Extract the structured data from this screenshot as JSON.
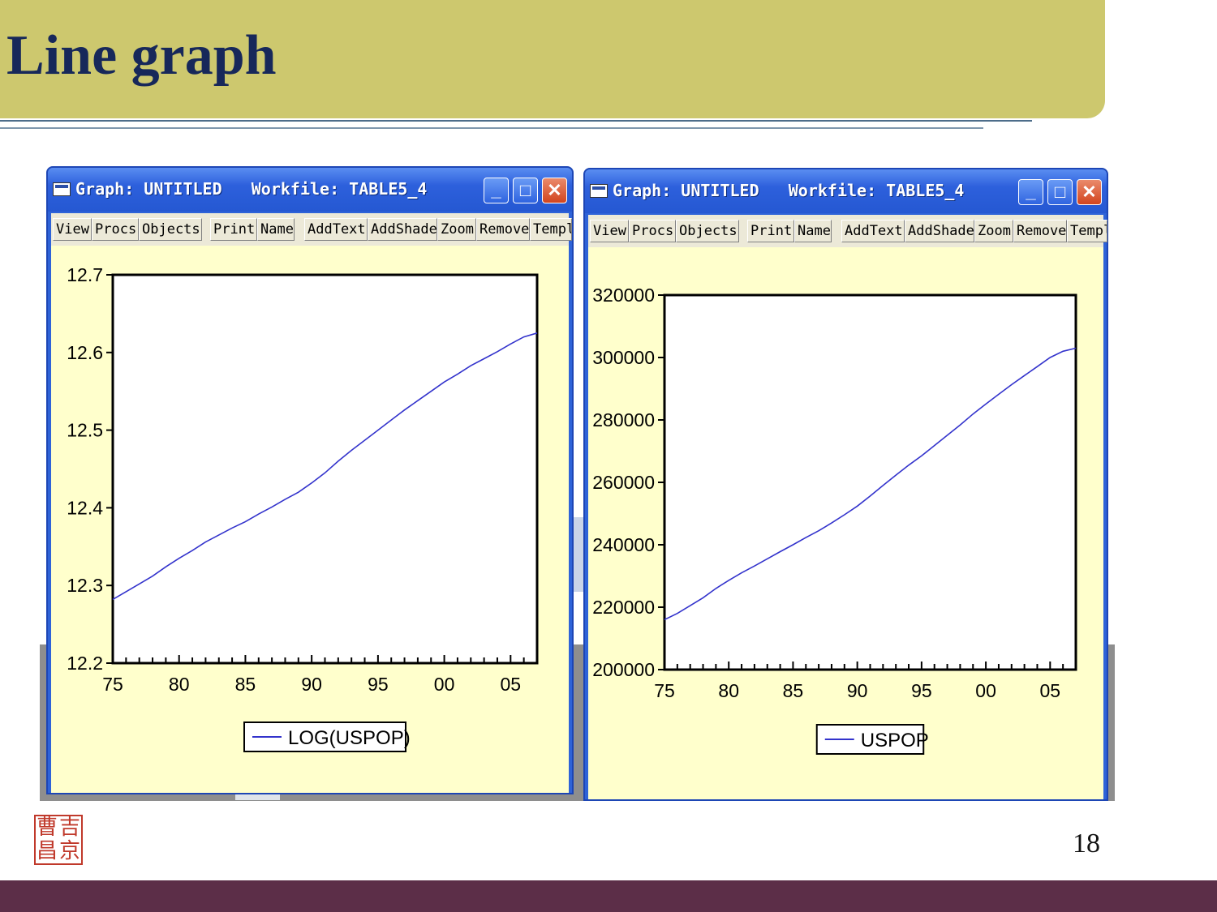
{
  "slide": {
    "title": "Line graph",
    "page_number": "18",
    "seal_chars": [
      "曹",
      "吉",
      "昌",
      "京"
    ]
  },
  "windows": [
    {
      "title": "Graph: UNTITLED   Workfile: TABLE5_4",
      "toolbar": [
        "View",
        "Procs",
        "Objects",
        "Print",
        "Name",
        "AddText",
        "AddShade",
        "Zoom",
        "Remove",
        "Templ"
      ],
      "controls": {
        "minimize": "_",
        "maximize": "□",
        "close": "✕"
      }
    },
    {
      "title": "Graph: UNTITLED   Workfile: TABLE5_4",
      "toolbar": [
        "View",
        "Procs",
        "Objects",
        "Print",
        "Name",
        "AddText",
        "AddShade",
        "Zoom",
        "Remove",
        "Templ"
      ],
      "controls": {
        "minimize": "_",
        "maximize": "□",
        "close": "✕"
      }
    }
  ],
  "chart_data": [
    {
      "type": "line",
      "ylim": [
        12.2,
        12.7
      ],
      "yticks": [
        "12.2",
        "12.3",
        "12.4",
        "12.5",
        "12.6",
        "12.7"
      ],
      "xlim": [
        1975,
        2007
      ],
      "xticks": [
        "75",
        "80",
        "85",
        "90",
        "95",
        "00",
        "05"
      ],
      "legend": "top-center",
      "color": "#3333cc",
      "series": [
        {
          "name": "LOG(USPOP)",
          "x": [
            1975,
            1976,
            1977,
            1978,
            1979,
            1980,
            1981,
            1982,
            1983,
            1984,
            1985,
            1986,
            1987,
            1988,
            1989,
            1990,
            1991,
            1992,
            1993,
            1994,
            1995,
            1996,
            1997,
            1998,
            1999,
            2000,
            2001,
            2002,
            2003,
            2004,
            2005,
            2006,
            2007
          ],
          "values": [
            12.282,
            12.292,
            12.302,
            12.312,
            12.324,
            12.335,
            12.345,
            12.356,
            12.365,
            12.374,
            12.382,
            12.392,
            12.401,
            12.411,
            12.42,
            12.432,
            12.445,
            12.46,
            12.474,
            12.487,
            12.5,
            12.513,
            12.526,
            12.538,
            12.55,
            12.562,
            12.572,
            12.583,
            12.592,
            12.601,
            12.611,
            12.62,
            12.625
          ]
        }
      ]
    },
    {
      "type": "line",
      "ylim": [
        200000,
        320000
      ],
      "yticks": [
        "200000",
        "220000",
        "240000",
        "260000",
        "280000",
        "300000",
        "320000"
      ],
      "xlim": [
        1975,
        2007
      ],
      "xticks": [
        "75",
        "80",
        "85",
        "90",
        "95",
        "00",
        "05"
      ],
      "legend": "top-center",
      "color": "#3333cc",
      "series": [
        {
          "name": "USPOP",
          "x": [
            1975,
            1976,
            1977,
            1978,
            1979,
            1980,
            1981,
            1982,
            1983,
            1984,
            1985,
            1986,
            1987,
            1988,
            1989,
            1990,
            1991,
            1992,
            1993,
            1994,
            1995,
            1996,
            1997,
            1998,
            1999,
            2000,
            2001,
            2002,
            2003,
            2004,
            2005,
            2006,
            2007
          ],
          "values": [
            216000,
            218000,
            220500,
            223000,
            226000,
            228600,
            231000,
            233200,
            235500,
            237800,
            240000,
            242300,
            244500,
            247000,
            249600,
            252400,
            255600,
            259000,
            262300,
            265500,
            268500,
            271800,
            275100,
            278400,
            281900,
            285100,
            288200,
            291300,
            294200,
            297100,
            300000,
            302000,
            303000
          ]
        }
      ]
    }
  ]
}
